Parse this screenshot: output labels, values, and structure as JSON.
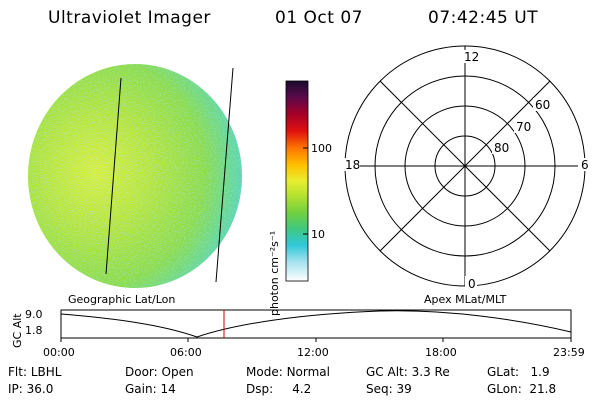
{
  "header": {
    "title": "Ultraviolet Imager",
    "date": "01 Oct 07",
    "time": "07:42:45 UT"
  },
  "colorbar": {
    "unit_label": "photon cm⁻²s⁻¹",
    "ticks": [
      "100",
      "10"
    ]
  },
  "polar": {
    "mlt_labels": [
      "12",
      "6",
      "0",
      "18"
    ],
    "lat_labels": [
      "60",
      "70",
      "80"
    ]
  },
  "timeline": {
    "left_label": "Geographic Lat/Lon",
    "right_label": "Apex MLat/MLT",
    "y_axis_label": "GC Alt",
    "y_ticks": [
      "9.0",
      "1.8"
    ],
    "x_ticks": [
      "00:00",
      "06:00",
      "12:00",
      "18:00",
      "23:59"
    ],
    "marker_time": "07:42:45"
  },
  "status": {
    "row1": [
      {
        "key": "Flt:",
        "value": "LBHL"
      },
      {
        "key": "Door:",
        "value": "Open"
      },
      {
        "key": "Mode:",
        "value": "Normal"
      },
      {
        "key": "GC Alt:",
        "value": "3.3 Re"
      },
      {
        "key": "GLat:",
        "value": "1.9"
      }
    ],
    "row2": [
      {
        "key": "IP:",
        "value": "36.0"
      },
      {
        "key": "Gain:",
        "value": "14"
      },
      {
        "key": "Dsp:",
        "value": "4.2"
      },
      {
        "key": "Seq:",
        "value": "39"
      },
      {
        "key": "GLon:",
        "value": "21.8"
      }
    ]
  },
  "colors": {
    "marker": "#d00000",
    "disk_main": "#a8e23a",
    "disk_edge": "#5fd9c8"
  }
}
